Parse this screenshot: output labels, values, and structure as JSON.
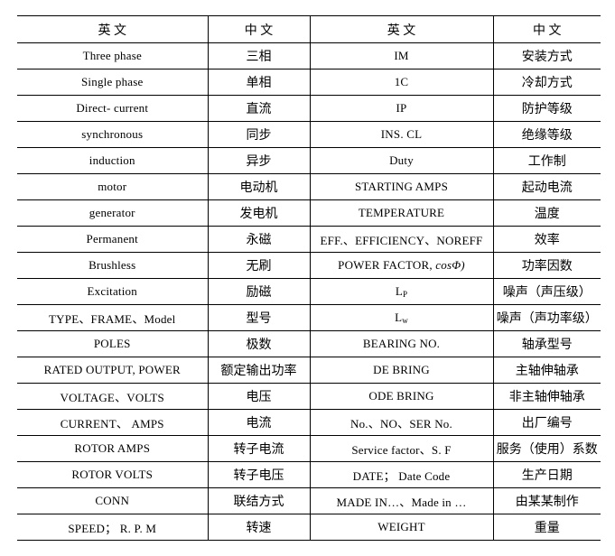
{
  "table": {
    "headers": [
      "英 文",
      "中 文",
      "英 文",
      "中 文"
    ],
    "rows": [
      [
        "Three phase",
        "三相",
        "IM",
        "安装方式"
      ],
      [
        "Single phase",
        "单相",
        "1C",
        "冷却方式"
      ],
      [
        "Direct- current",
        "直流",
        "IP",
        "防护等级"
      ],
      [
        "synchronous",
        "同步",
        "INS. CL",
        "绝缘等级"
      ],
      [
        "induction",
        "异步",
        "Duty",
        "工作制"
      ],
      [
        "motor",
        "电动机",
        "STARTING AMPS",
        "起动电流"
      ],
      [
        "generator",
        "发电机",
        "TEMPERATURE",
        "温度"
      ],
      [
        "Permanent",
        "永磁",
        "EFF.、EFFICIENCY、NOREFF",
        "效率"
      ],
      [
        "Brushless",
        "无刷",
        {
          "text": "POWER FACTOR, ",
          "italic": "cosΦ)"
        },
        "功率因数"
      ],
      [
        "Excitation",
        "励磁",
        {
          "base": "L",
          "sub": "P"
        },
        "噪声（声压级）"
      ],
      [
        "TYPE、FRAME、Model",
        "型号",
        {
          "base": "L",
          "sub": "w"
        },
        "噪声（声功率级）"
      ],
      [
        "POLES",
        "极数",
        "BEARING NO.",
        "轴承型号"
      ],
      [
        "RATED OUTPUT,  POWER",
        "额定输出功率",
        "DE BRING",
        "主轴伸轴承"
      ],
      [
        "VOLTAGE、VOLTS",
        "电压",
        "ODE BRING",
        "非主轴伸轴承"
      ],
      [
        "CURRENT、 AMPS",
        "电流",
        "No.、NO、SER No.",
        "出厂编号"
      ],
      [
        "ROTOR AMPS",
        "转子电流",
        "Service factor、S. F",
        "服务（使用）系数"
      ],
      [
        "ROTOR VOLTS",
        "转子电压",
        "DATE； Date Code",
        "生产日期"
      ],
      [
        "CONN",
        "联结方式",
        "MADE IN…、Made in …",
        "由某某制作"
      ],
      [
        "SPEED； R. P. M",
        "转速",
        "WEIGHT",
        "重量"
      ]
    ]
  }
}
